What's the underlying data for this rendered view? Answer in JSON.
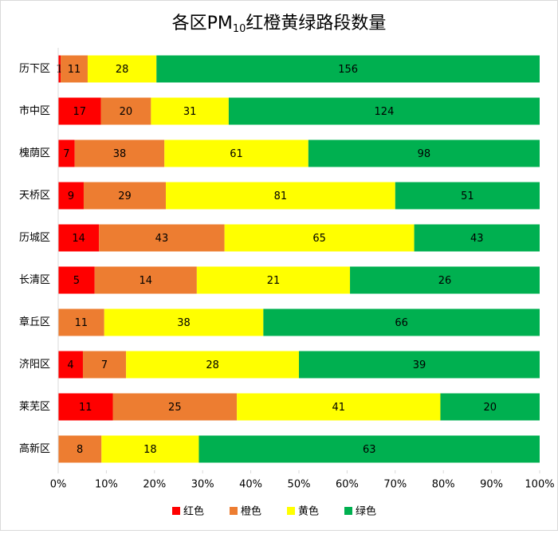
{
  "chart_data": {
    "type": "stacked_bar_percent",
    "title": [
      "各区PM",
      "10",
      "红橙黄绿路段数量"
    ],
    "categories": [
      "历下区",
      "市中区",
      "槐荫区",
      "天桥区",
      "历城区",
      "长清区",
      "章丘区",
      "济阳区",
      "莱芜区",
      "高新区"
    ],
    "series": [
      {
        "name": "红色",
        "color": "#ff0000",
        "values": [
          1,
          17,
          7,
          9,
          14,
          5,
          0,
          4,
          11,
          0
        ]
      },
      {
        "name": "橙色",
        "color": "#ed7d31",
        "values": [
          11,
          20,
          38,
          29,
          43,
          14,
          11,
          7,
          25,
          8
        ]
      },
      {
        "name": "黄色",
        "color": "#ffff00",
        "values": [
          28,
          31,
          61,
          81,
          65,
          21,
          38,
          28,
          41,
          18
        ]
      },
      {
        "name": "绿色",
        "color": "#00b050",
        "values": [
          156,
          124,
          98,
          51,
          43,
          26,
          66,
          39,
          20,
          63
        ]
      }
    ],
    "xlim": [
      0,
      100
    ],
    "xticks": [
      {
        "value": 0,
        "label": "0%"
      },
      {
        "value": 10,
        "label": "10%"
      },
      {
        "value": 20,
        "label": "20%"
      },
      {
        "value": 30,
        "label": "30%"
      },
      {
        "value": 40,
        "label": "40%"
      },
      {
        "value": 50,
        "label": "50%"
      },
      {
        "value": 60,
        "label": "60%"
      },
      {
        "value": 70,
        "label": "70%"
      },
      {
        "value": 80,
        "label": "80%"
      },
      {
        "value": 90,
        "label": "90%"
      },
      {
        "value": 100,
        "label": "100%"
      }
    ],
    "legend": "bottom"
  }
}
